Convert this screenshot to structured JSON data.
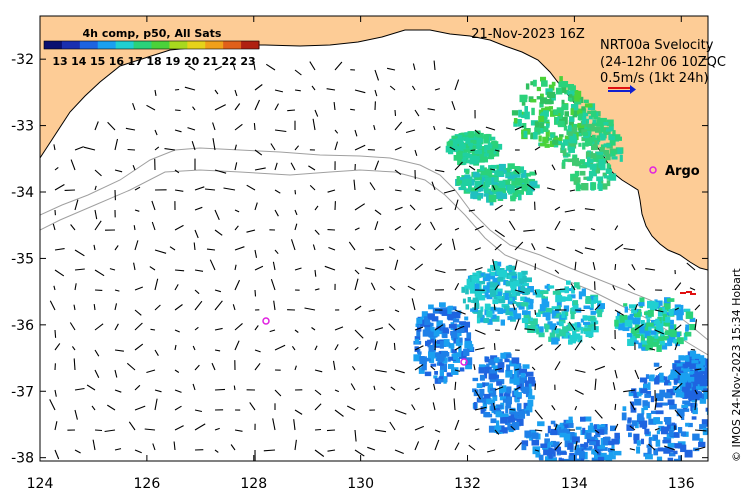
{
  "title_date": "21-Nov-2023 16Z",
  "colorbar": {
    "title": "4h comp, p50, All Sats",
    "ticks": [
      "13",
      "14",
      "15",
      "16",
      "17",
      "18",
      "19",
      "20",
      "21",
      "22",
      "23"
    ],
    "colors": [
      "#0a1070",
      "#1a2fb0",
      "#1e64e0",
      "#1aa0f0",
      "#20d0d0",
      "#2ad27a",
      "#4ad23a",
      "#a8d81e",
      "#e6d21a",
      "#f0a01a",
      "#e0601a",
      "#b02010"
    ]
  },
  "velocity_label": {
    "line1": "NRT00a Svelocity",
    "line2": "(24-12hr 06 10ZQC",
    "scale": "0.5m/s (1kt 24h)"
  },
  "argo_label": "Argo",
  "credit": "© IMOS 24-Nov-2023 15:34 Hobart",
  "x_ticks": [
    "124",
    "126",
    "128",
    "130",
    "132",
    "134",
    "136"
  ],
  "y_ticks": [
    "-32",
    "-33",
    "-34",
    "-35",
    "-36",
    "-37",
    "-38"
  ],
  "axes": {
    "lon_range": [
      124,
      136.5
    ],
    "lat_range": [
      -38.05,
      -31.35
    ]
  },
  "colors": {
    "land": "#fdcc96",
    "ocean": "#ffffff",
    "bathy": "#a0a0a0",
    "argo": "#e020e0",
    "arrow": "#000000"
  }
}
